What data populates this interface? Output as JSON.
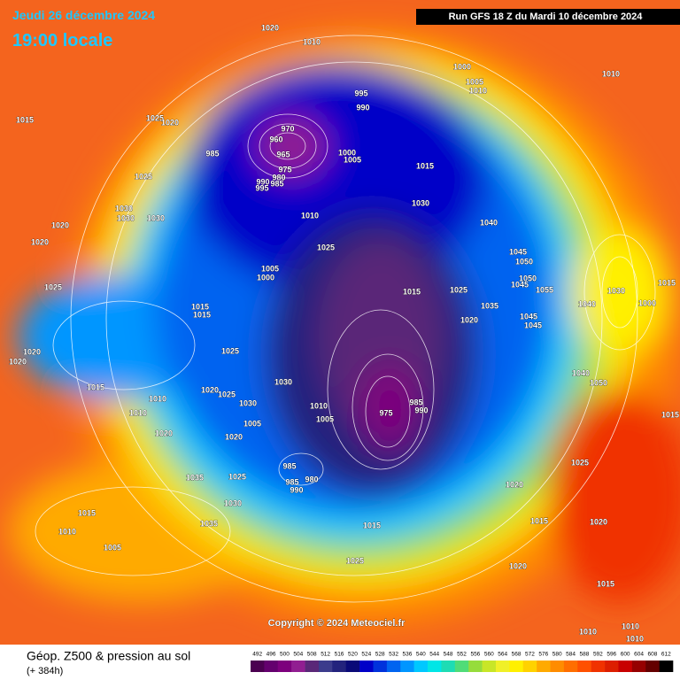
{
  "header": {
    "date": "Jeudi 26 décembre 2024",
    "time": "19:00 locale",
    "run": "Run GFS 18 Z du Mardi 10 décembre 2024"
  },
  "map": {
    "pressure_labels": [
      1020,
      1010,
      1000,
      1005,
      1010,
      1010,
      995,
      990,
      1015,
      1025,
      1020,
      970,
      960,
      965,
      985,
      1000,
      1005,
      975,
      980,
      990,
      985,
      995,
      1015,
      1025,
      1030,
      1030,
      1030,
      1030,
      1010,
      1040,
      1020,
      1020,
      1025,
      1045,
      1050,
      1005,
      1000,
      1050,
      1045,
      1055,
      1030,
      1015,
      1025,
      1015,
      1025,
      1015,
      1015,
      1035,
      1040,
      1000,
      1020,
      1045,
      1045,
      1020,
      1025,
      1020,
      1040,
      1050,
      1015,
      1030,
      1020,
      1025,
      1030,
      1010,
      985,
      990,
      975,
      1010,
      1005,
      1010,
      1015,
      1005,
      1020,
      1020,
      1025,
      985,
      980,
      985,
      990,
      1035,
      1025,
      1030,
      1020,
      1015,
      1015,
      1010,
      1035,
      1020,
      1015,
      1005,
      1025,
      1020,
      1015,
      1010,
      1010,
      1010
    ],
    "copyright": "Copyright © 2024 Meteociel.fr"
  },
  "footer": {
    "title": "Géop. Z500 & pression au sol",
    "lead": "(+ 384h)"
  },
  "scale": {
    "values": [
      492,
      496,
      500,
      504,
      508,
      512,
      516,
      520,
      524,
      528,
      532,
      536,
      540,
      544,
      548,
      552,
      556,
      560,
      564,
      568,
      572,
      576,
      580,
      584,
      588,
      592,
      596,
      600,
      604,
      608,
      612
    ],
    "colors": [
      "#4b0050",
      "#64006e",
      "#7d007d",
      "#911e91",
      "#5a2878",
      "#3c3c8c",
      "#23237d",
      "#0a0a78",
      "#0000c8",
      "#0032dc",
      "#0064f0",
      "#0096ff",
      "#00c8ff",
      "#00e6e6",
      "#1edcb4",
      "#50dc78",
      "#96dc3c",
      "#c8e628",
      "#f0f028",
      "#fff000",
      "#ffd200",
      "#ffaa00",
      "#ff8c00",
      "#ff6e00",
      "#ff5000",
      "#f03200",
      "#dc1e00",
      "#c80000",
      "#960000",
      "#640000",
      "#000000"
    ]
  }
}
